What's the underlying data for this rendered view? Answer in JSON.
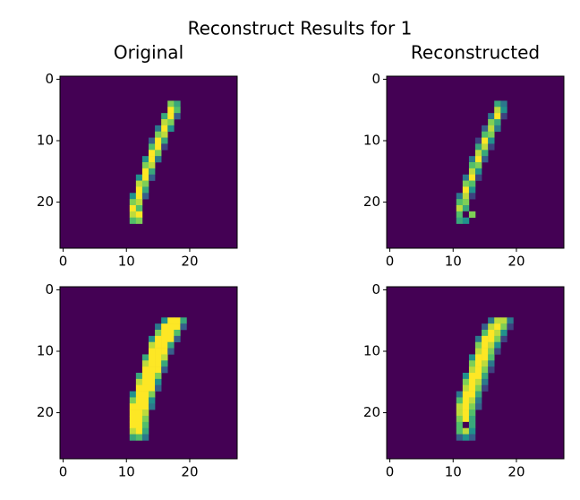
{
  "title": "Reconstruct Results for 1",
  "colormap": [
    "#440154",
    "#3b528b",
    "#21918c",
    "#5ec962",
    "#fde725"
  ],
  "clim": [
    0,
    1
  ],
  "chart_data": [
    {
      "type": "heatmap",
      "title": "Original",
      "xlim": [
        -0.5,
        27.5
      ],
      "ylim": [
        27.5,
        -0.5
      ],
      "xticks": [
        0,
        10,
        20
      ],
      "yticks": [
        0,
        10,
        20
      ],
      "background": 0,
      "rows": [
        {
          "row": 4,
          "col": 17,
          "values": [
            0.8,
            0.6
          ]
        },
        {
          "row": 5,
          "col": 17,
          "values": [
            1,
            0.7
          ]
        },
        {
          "row": 6,
          "col": 16,
          "values": [
            0.6,
            1,
            0.3
          ]
        },
        {
          "row": 7,
          "col": 16,
          "values": [
            0.9,
            0.8
          ]
        },
        {
          "row": 8,
          "col": 15,
          "values": [
            0.4,
            1,
            0.5
          ]
        },
        {
          "row": 9,
          "col": 15,
          "values": [
            0.8,
            0.9
          ]
        },
        {
          "row": 10,
          "col": 14,
          "values": [
            0.3,
            1,
            0.6
          ]
        },
        {
          "row": 11,
          "col": 14,
          "values": [
            0.7,
            1,
            0.2
          ]
        },
        {
          "row": 12,
          "col": 14,
          "values": [
            1,
            0.8
          ]
        },
        {
          "row": 13,
          "col": 13,
          "values": [
            0.5,
            1,
            0.4
          ]
        },
        {
          "row": 14,
          "col": 13,
          "values": [
            0.8,
            0.9
          ]
        },
        {
          "row": 15,
          "col": 13,
          "values": [
            1,
            0.6
          ]
        },
        {
          "row": 16,
          "col": 12,
          "values": [
            0.5,
            1,
            0.3
          ]
        },
        {
          "row": 17,
          "col": 12,
          "values": [
            0.9,
            0.8
          ]
        },
        {
          "row": 18,
          "col": 12,
          "values": [
            1,
            0.6
          ]
        },
        {
          "row": 19,
          "col": 11,
          "values": [
            0.5,
            1,
            0.3
          ]
        },
        {
          "row": 20,
          "col": 11,
          "values": [
            0.8,
            0.9
          ]
        },
        {
          "row": 21,
          "col": 11,
          "values": [
            1,
            0.7
          ]
        },
        {
          "row": 22,
          "col": 11,
          "values": [
            0.9,
            1
          ]
        },
        {
          "row": 23,
          "col": 11,
          "values": [
            0.7,
            0.8
          ]
        }
      ]
    },
    {
      "type": "heatmap",
      "title": "Reconstructed",
      "xlim": [
        -0.5,
        27.5
      ],
      "ylim": [
        27.5,
        -0.5
      ],
      "xticks": [
        0,
        10,
        20
      ],
      "yticks": [
        0,
        10,
        20
      ],
      "background": 0,
      "rows": [
        {
          "row": 4,
          "col": 17,
          "values": [
            0.6,
            0.4
          ]
        },
        {
          "row": 5,
          "col": 17,
          "values": [
            0.9,
            0.5
          ]
        },
        {
          "row": 6,
          "col": 16,
          "values": [
            0.4,
            1,
            0.2
          ]
        },
        {
          "row": 7,
          "col": 16,
          "values": [
            0.8,
            0.6
          ]
        },
        {
          "row": 8,
          "col": 15,
          "values": [
            0.3,
            0.9,
            0.4
          ]
        },
        {
          "row": 9,
          "col": 15,
          "values": [
            0.7,
            0.8
          ]
        },
        {
          "row": 10,
          "col": 14,
          "values": [
            0.2,
            1,
            0.5
          ]
        },
        {
          "row": 11,
          "col": 14,
          "values": [
            0.6,
            0.9,
            0.2
          ]
        },
        {
          "row": 12,
          "col": 14,
          "values": [
            0.9,
            0.6
          ]
        },
        {
          "row": 13,
          "col": 13,
          "values": [
            0.4,
            1,
            0.3
          ]
        },
        {
          "row": 14,
          "col": 13,
          "values": [
            0.7,
            0.8
          ]
        },
        {
          "row": 15,
          "col": 13,
          "values": [
            0.9,
            0.5
          ]
        },
        {
          "row": 16,
          "col": 12,
          "values": [
            0.4,
            1,
            0.2
          ]
        },
        {
          "row": 17,
          "col": 12,
          "values": [
            0.8,
            0.7
          ]
        },
        {
          "row": 18,
          "col": 12,
          "values": [
            1,
            0.5
          ]
        },
        {
          "row": 19,
          "col": 11,
          "values": [
            0.4,
            0.9,
            0.2
          ]
        },
        {
          "row": 20,
          "col": 11,
          "values": [
            0.7,
            0.8
          ]
        },
        {
          "row": 21,
          "col": 11,
          "values": [
            0.9,
            0.6
          ]
        },
        {
          "row": 22,
          "col": 11,
          "values": [
            0.7,
            0,
            0.8
          ]
        },
        {
          "row": 23,
          "col": 11,
          "values": [
            0.6,
            0.5
          ]
        }
      ]
    },
    {
      "type": "heatmap",
      "xlim": [
        -0.5,
        27.5
      ],
      "ylim": [
        27.5,
        -0.5
      ],
      "xticks": [
        0,
        10,
        20
      ],
      "yticks": [
        0,
        10,
        20
      ],
      "background": 0,
      "rows": [
        {
          "row": 5,
          "col": 16,
          "values": [
            0.5,
            1,
            1,
            0.6
          ]
        },
        {
          "row": 6,
          "col": 15,
          "values": [
            0.4,
            1,
            1,
            1,
            0.3
          ]
        },
        {
          "row": 7,
          "col": 15,
          "values": [
            0.8,
            1,
            1,
            0.7
          ]
        },
        {
          "row": 8,
          "col": 14,
          "values": [
            0.5,
            1,
            1,
            1,
            0.3
          ]
        },
        {
          "row": 9,
          "col": 14,
          "values": [
            0.9,
            1,
            1,
            0.6
          ]
        },
        {
          "row": 10,
          "col": 14,
          "values": [
            1,
            1,
            1,
            0.3
          ]
        },
        {
          "row": 11,
          "col": 13,
          "values": [
            0.6,
            1,
            1,
            0.9
          ]
        },
        {
          "row": 12,
          "col": 13,
          "values": [
            0.9,
            1,
            1,
            0.6
          ]
        },
        {
          "row": 13,
          "col": 13,
          "values": [
            1,
            1,
            1,
            0.3
          ]
        },
        {
          "row": 14,
          "col": 12,
          "values": [
            0.6,
            1,
            1,
            0.8
          ]
        },
        {
          "row": 15,
          "col": 12,
          "values": [
            0.9,
            1,
            1,
            0.5
          ]
        },
        {
          "row": 16,
          "col": 12,
          "values": [
            1,
            1,
            1,
            0.3
          ]
        },
        {
          "row": 17,
          "col": 11,
          "values": [
            0.5,
            1,
            1,
            0.8
          ]
        },
        {
          "row": 18,
          "col": 11,
          "values": [
            0.8,
            1,
            1,
            0.5
          ]
        },
        {
          "row": 19,
          "col": 11,
          "values": [
            1,
            1,
            1,
            0.4
          ]
        },
        {
          "row": 20,
          "col": 11,
          "values": [
            1,
            1,
            0.9
          ]
        },
        {
          "row": 21,
          "col": 11,
          "values": [
            1,
            1,
            0.8
          ]
        },
        {
          "row": 22,
          "col": 11,
          "values": [
            1,
            1,
            0.7
          ]
        },
        {
          "row": 23,
          "col": 11,
          "values": [
            0.9,
            1,
            0.6
          ]
        },
        {
          "row": 24,
          "col": 11,
          "values": [
            0.6,
            0.7,
            0.4
          ]
        }
      ]
    },
    {
      "type": "heatmap",
      "xlim": [
        -0.5,
        27.5
      ],
      "ylim": [
        27.5,
        -0.5
      ],
      "xticks": [
        0,
        10,
        20
      ],
      "yticks": [
        0,
        10,
        20
      ],
      "background": 0,
      "rows": [
        {
          "row": 5,
          "col": 16,
          "values": [
            0.4,
            0.9,
            0.9,
            0.4
          ]
        },
        {
          "row": 6,
          "col": 15,
          "values": [
            0.3,
            0.9,
            1,
            0.8,
            0.2
          ]
        },
        {
          "row": 7,
          "col": 15,
          "values": [
            0.7,
            1,
            0.9,
            0.5
          ]
        },
        {
          "row": 8,
          "col": 14,
          "values": [
            0.4,
            1,
            1,
            0.8,
            0.2
          ]
        },
        {
          "row": 9,
          "col": 14,
          "values": [
            0.8,
            1,
            0.9,
            0.5
          ]
        },
        {
          "row": 10,
          "col": 14,
          "values": [
            0.9,
            1,
            0.8,
            0.2
          ]
        },
        {
          "row": 11,
          "col": 13,
          "values": [
            0.5,
            1,
            1,
            0.7
          ]
        },
        {
          "row": 12,
          "col": 13,
          "values": [
            0.8,
            1,
            0.9,
            0.4
          ]
        },
        {
          "row": 13,
          "col": 13,
          "values": [
            0.9,
            1,
            0.8,
            0.2
          ]
        },
        {
          "row": 14,
          "col": 12,
          "values": [
            0.5,
            1,
            1,
            0.6
          ]
        },
        {
          "row": 15,
          "col": 12,
          "values": [
            0.8,
            1,
            0.9,
            0.4
          ]
        },
        {
          "row": 16,
          "col": 12,
          "values": [
            0.9,
            1,
            0.8,
            0.2
          ]
        },
        {
          "row": 17,
          "col": 11,
          "values": [
            0.4,
            1,
            1,
            0.6
          ]
        },
        {
          "row": 18,
          "col": 11,
          "values": [
            0.7,
            1,
            0.9,
            0.4
          ]
        },
        {
          "row": 19,
          "col": 11,
          "values": [
            0.9,
            1,
            0.8,
            0.3
          ]
        },
        {
          "row": 20,
          "col": 11,
          "values": [
            0.9,
            1,
            0.7
          ]
        },
        {
          "row": 21,
          "col": 11,
          "values": [
            0.8,
            1,
            0.6
          ]
        },
        {
          "row": 22,
          "col": 11,
          "values": [
            0.7,
            0,
            0.6
          ]
        },
        {
          "row": 23,
          "col": 11,
          "values": [
            0.7,
            0.9,
            0.5
          ]
        },
        {
          "row": 24,
          "col": 11,
          "values": [
            0.3,
            0.5,
            0.3
          ]
        }
      ]
    }
  ]
}
